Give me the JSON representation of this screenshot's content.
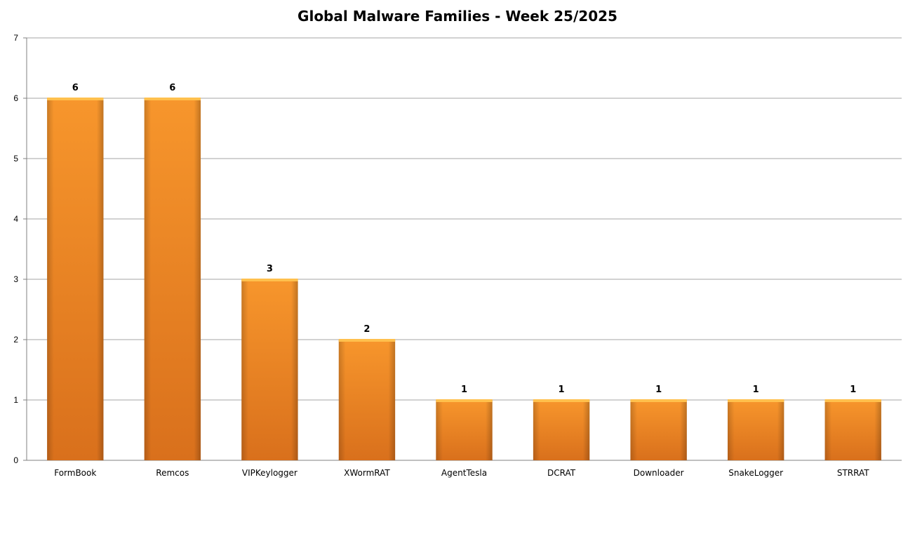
{
  "chart_data": {
    "type": "bar",
    "title": "Global Malware Families - Week 25/2025",
    "categories": [
      "FormBook",
      "Remcos",
      "VIPKeylogger",
      "XWormRAT",
      "AgentTesla",
      "DCRAT",
      "Downloader",
      "SnakeLogger",
      "STRRAT"
    ],
    "values": [
      6,
      6,
      3,
      2,
      1,
      1,
      1,
      1,
      1
    ],
    "xlabel": "",
    "ylabel": "",
    "ylim": [
      0,
      7
    ],
    "yticks": [
      0,
      1,
      2,
      3,
      4,
      5,
      6,
      7
    ],
    "grid": true,
    "legend": "none",
    "data_labels": true,
    "bar_color": "#f7962c",
    "bar_color_dark": "#d9701c",
    "grid_color": "#a6a6a6"
  }
}
